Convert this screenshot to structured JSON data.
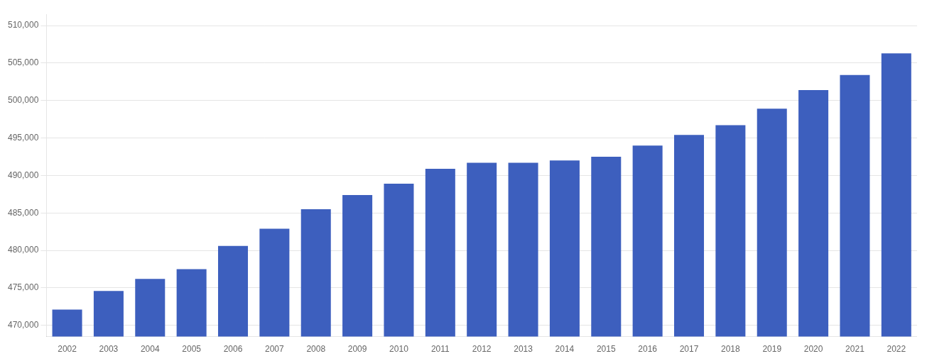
{
  "chart_data": {
    "type": "bar",
    "categories": [
      "2002",
      "2003",
      "2004",
      "2005",
      "2006",
      "2007",
      "2008",
      "2009",
      "2010",
      "2011",
      "2012",
      "2013",
      "2014",
      "2015",
      "2016",
      "2017",
      "2018",
      "2019",
      "2020",
      "2021",
      "2022"
    ],
    "values": [
      472100,
      474600,
      476200,
      477500,
      480600,
      482900,
      485500,
      487400,
      488900,
      490900,
      491700,
      491700,
      492000,
      492500,
      494000,
      495400,
      496700,
      498900,
      501400,
      503400,
      506300
    ],
    "color": "#3d5fbe",
    "ylim": [
      468500,
      511500
    ],
    "yticks": [
      {
        "value": 470000,
        "label": "470,000"
      },
      {
        "value": 475000,
        "label": "475,000"
      },
      {
        "value": 480000,
        "label": "480,000"
      },
      {
        "value": 485000,
        "label": "485,000"
      },
      {
        "value": 490000,
        "label": "490,000"
      },
      {
        "value": 495000,
        "label": "495,000"
      },
      {
        "value": 500000,
        "label": "500,000"
      },
      {
        "value": 505000,
        "label": "505,000"
      },
      {
        "value": 510000,
        "label": "510,000"
      }
    ],
    "grid": true
  }
}
